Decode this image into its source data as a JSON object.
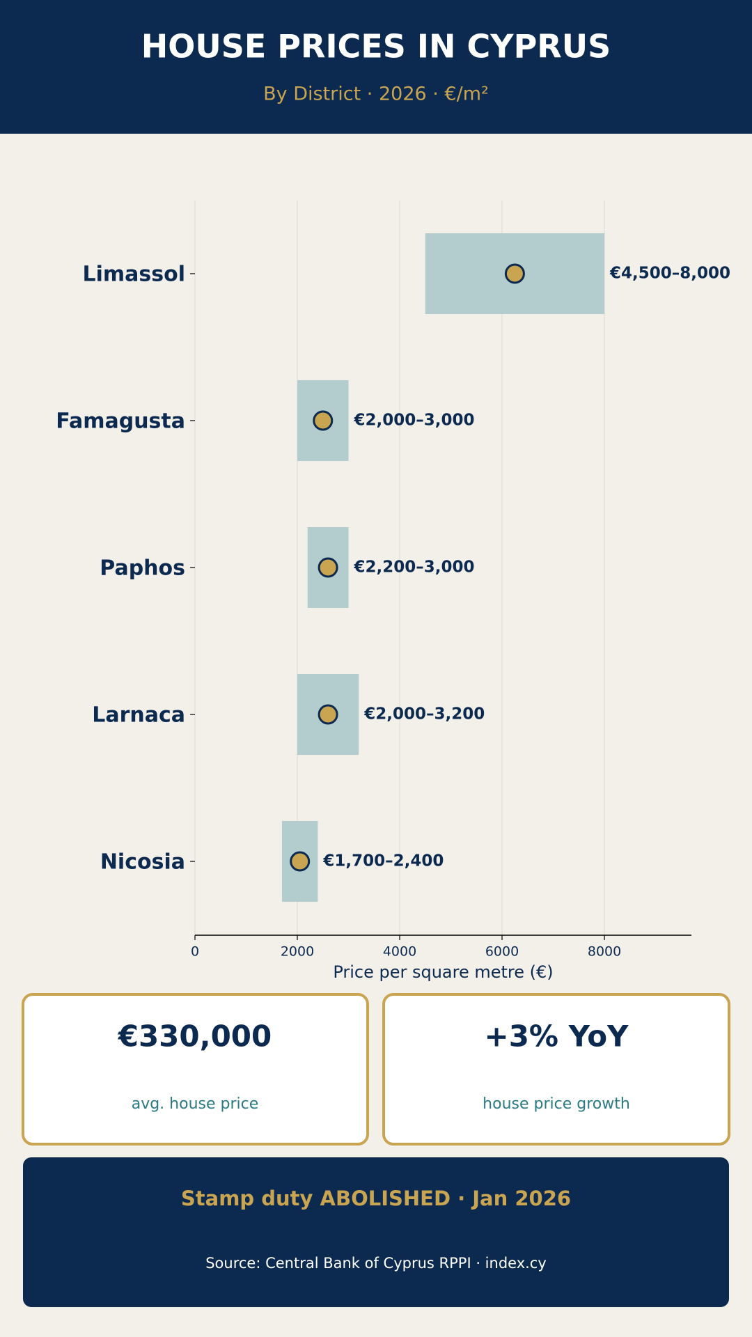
{
  "header": {
    "title": "HOUSE PRICES IN CYPRUS",
    "subtitle": "By District · 2026 · €/m²"
  },
  "chart_data": {
    "type": "range",
    "categories": [
      "Limassol",
      "Famagusta",
      "Paphos",
      "Larnaca",
      "Nicosia"
    ],
    "low": [
      4500,
      2000,
      2200,
      2000,
      1700
    ],
    "high": [
      8000,
      3000,
      3000,
      3200,
      2400
    ],
    "mid": [
      6250,
      2500,
      2600,
      2600,
      2050
    ],
    "value_labels": [
      "€4,500–8,000",
      "€2,000–3,000",
      "€2,200–3,000",
      "€2,000–3,200",
      "€1,700–2,400"
    ],
    "xlim": [
      0,
      9700
    ],
    "xticks": [
      0,
      2000,
      4000,
      6000,
      8000
    ],
    "xlabel": "Price per square metre (€)",
    "grid": true,
    "bar_color": "#b3cccd",
    "dot_color": "#c9a451"
  },
  "stats": [
    {
      "value": "€330,000",
      "label": "avg. house price"
    },
    {
      "value": "+3% YoY",
      "label": "house price growth"
    }
  ],
  "footer": {
    "headline": "Stamp duty ABOLISHED · Jan 2026",
    "source": "Source: Central Bank of Cyprus RPPI · index.cy"
  }
}
